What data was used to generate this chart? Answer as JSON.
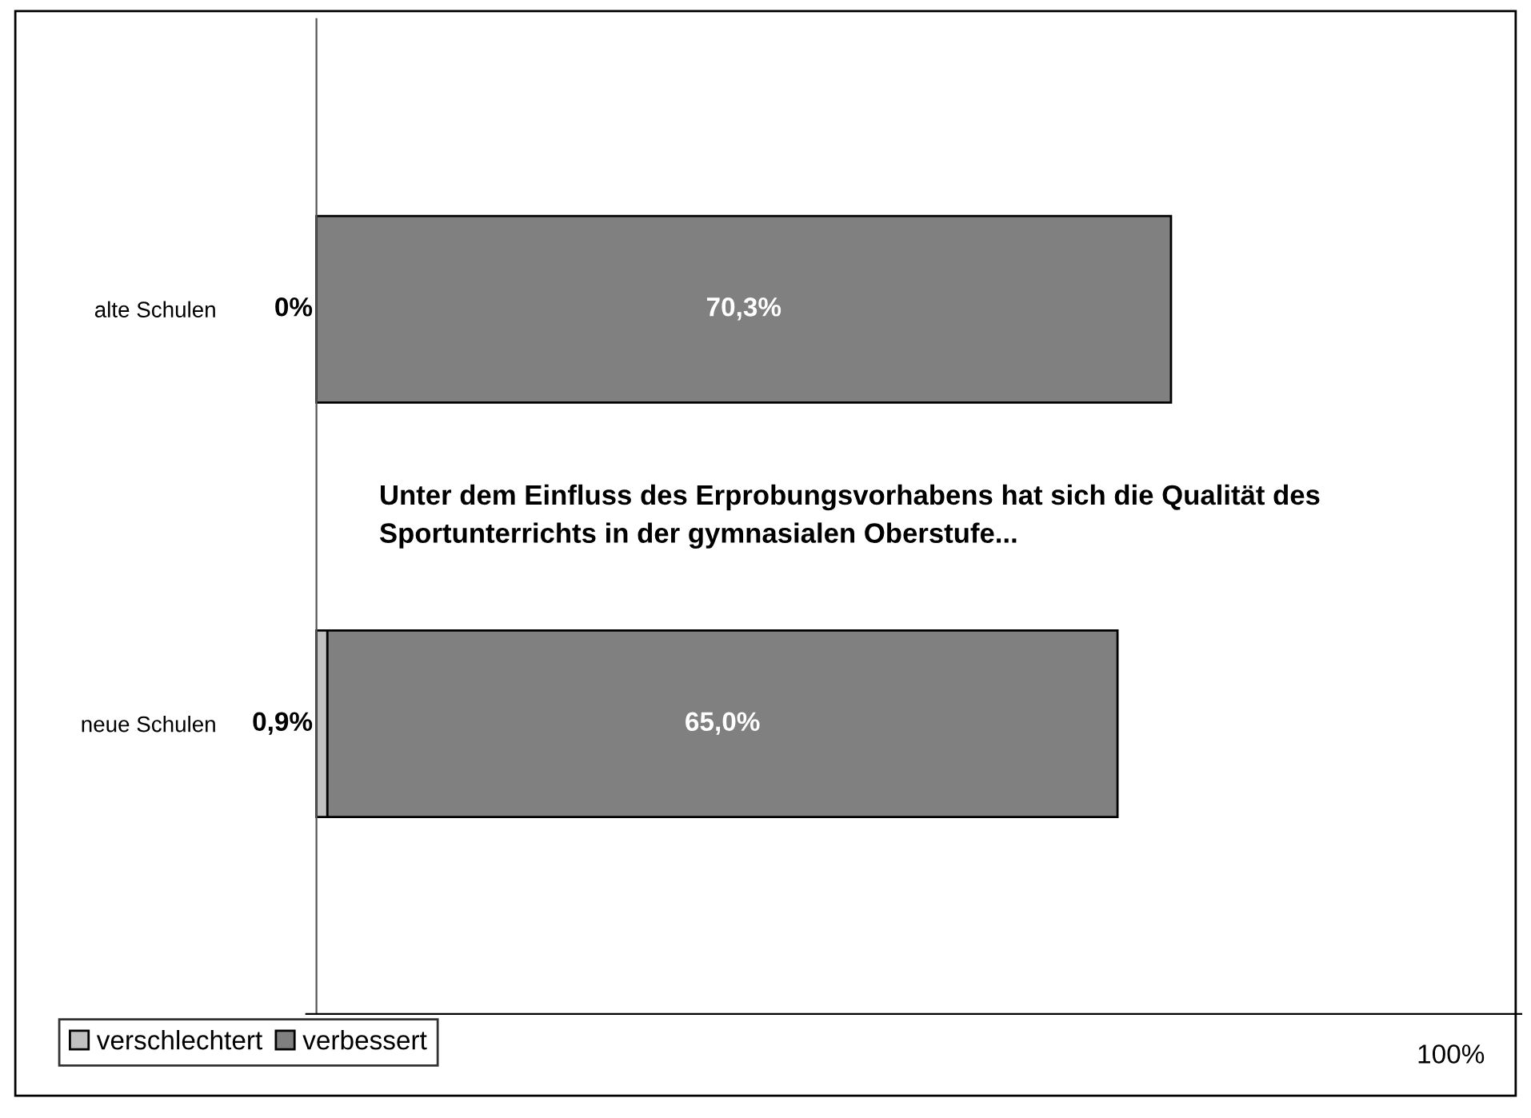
{
  "chart_data": {
    "type": "bar",
    "orientation": "horizontal",
    "stacked": true,
    "categories": [
      "alte Schulen",
      "neue Schulen"
    ],
    "series": [
      {
        "name": "verschlechtert",
        "color": "#c0c0c0",
        "values": [
          0,
          0.9
        ],
        "value_labels": [
          "0%",
          "0,9%"
        ]
      },
      {
        "name": "verbessert",
        "color": "#808080",
        "values": [
          70.3,
          65.0
        ],
        "value_labels": [
          "70,3%",
          "65,0%"
        ]
      }
    ],
    "annotations": [
      "Unter dem Einfluss des Erprobungsvorhabens hat sich die Qualität des Sportunterrichts in der gymnasialen Oberstufe...",
      "100%"
    ],
    "legend": "bottom left",
    "grid": false
  }
}
